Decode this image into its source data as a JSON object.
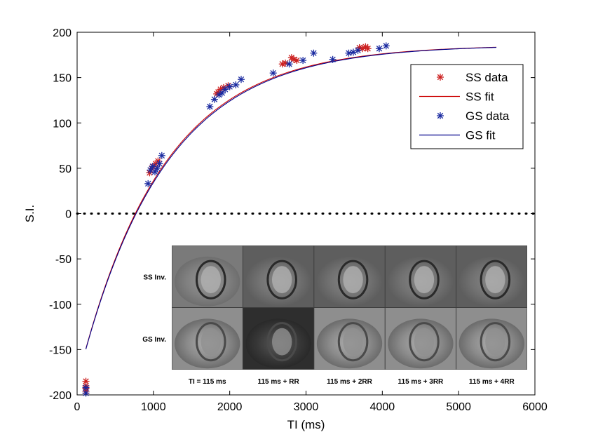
{
  "chart_data": {
    "type": "scatter",
    "xlabel": "TI (ms)",
    "ylabel": "S.I.",
    "xlim": [
      0,
      6000
    ],
    "ylim": [
      -200,
      200
    ],
    "xticks": [
      0,
      1000,
      2000,
      3000,
      4000,
      5000,
      6000
    ],
    "yticks": [
      -200,
      -150,
      -100,
      -50,
      0,
      50,
      100,
      150,
      200
    ],
    "grid": false,
    "legend_position": "top-right",
    "zero_line": {
      "y": 0,
      "style": "dotted",
      "color": "#000000"
    },
    "fit_model": {
      "S0": 186,
      "T1_ss": 1100,
      "T1_gs": 1115,
      "x_max": 5500
    },
    "series": [
      {
        "name": "SS data",
        "kind": "points",
        "marker": "asterisk",
        "color": "#cc2020",
        "points": [
          [
            115,
            -185
          ],
          [
            115,
            -190
          ],
          [
            115,
            -193
          ],
          [
            115,
            -196
          ],
          [
            950,
            45
          ],
          [
            980,
            50
          ],
          [
            1000,
            52
          ],
          [
            1030,
            55
          ],
          [
            1060,
            58
          ],
          [
            1830,
            132
          ],
          [
            1850,
            134
          ],
          [
            1880,
            137
          ],
          [
            1920,
            139
          ],
          [
            1980,
            141
          ],
          [
            2690,
            165
          ],
          [
            2730,
            166
          ],
          [
            2810,
            172
          ],
          [
            2840,
            170
          ],
          [
            2880,
            169
          ],
          [
            3700,
            183
          ],
          [
            3740,
            182
          ],
          [
            3780,
            184
          ],
          [
            3810,
            182
          ]
        ]
      },
      {
        "name": "SS fit",
        "kind": "line",
        "color": "#cc0000",
        "T1": 1100
      },
      {
        "name": "GS data",
        "kind": "points",
        "marker": "asterisk",
        "color": "#1a2aa0",
        "points": [
          [
            115,
            -192
          ],
          [
            115,
            -198
          ],
          [
            930,
            33
          ],
          [
            960,
            48
          ],
          [
            990,
            52
          ],
          [
            1020,
            46
          ],
          [
            1050,
            50
          ],
          [
            1080,
            55
          ],
          [
            1110,
            64
          ],
          [
            1740,
            118
          ],
          [
            1800,
            126
          ],
          [
            1860,
            131
          ],
          [
            1900,
            133
          ],
          [
            1940,
            137
          ],
          [
            2000,
            140
          ],
          [
            2080,
            142
          ],
          [
            2150,
            148
          ],
          [
            2570,
            155
          ],
          [
            2780,
            165
          ],
          [
            2960,
            169
          ],
          [
            3100,
            177
          ],
          [
            3350,
            170
          ],
          [
            3560,
            177
          ],
          [
            3620,
            178
          ],
          [
            3680,
            180
          ],
          [
            3960,
            182
          ],
          [
            4050,
            185
          ]
        ]
      },
      {
        "name": "GS fit",
        "kind": "line",
        "color": "#00008b",
        "T1": 1115
      }
    ],
    "legend": [
      {
        "label": "SS data",
        "kind": "points",
        "color": "#cc2020"
      },
      {
        "label": "SS fit",
        "kind": "line",
        "color": "#cc0000"
      },
      {
        "label": "GS data",
        "kind": "points",
        "color": "#1a2aa0"
      },
      {
        "label": "GS fit",
        "kind": "line",
        "color": "#00008b"
      }
    ],
    "inset": {
      "row_labels": [
        "SS Inv.",
        "GS Inv."
      ],
      "column_labels": [
        "TI = 115 ms",
        "115  ms + RR",
        "115  ms + 2RR",
        "115  ms + 3RR",
        "115  ms + 4RR"
      ]
    }
  }
}
